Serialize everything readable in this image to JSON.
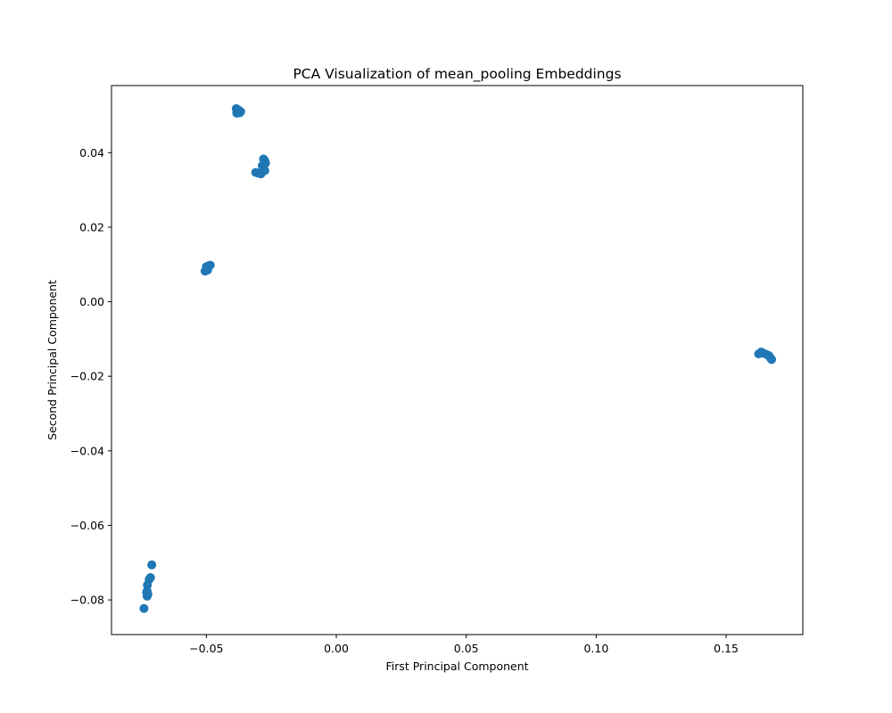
{
  "chart_data": {
    "type": "scatter",
    "title": "PCA Visualization of mean_pooling Embeddings",
    "xlabel": "First Principal Component",
    "ylabel": "Second Principal Component",
    "xlim": [
      -0.0865,
      0.1795
    ],
    "ylim": [
      -0.0893,
      0.058
    ],
    "x_ticks": [
      -0.05,
      0.0,
      0.05,
      0.1,
      0.15
    ],
    "x_tick_labels": [
      "−0.05",
      "0.00",
      "0.05",
      "0.10",
      "0.15"
    ],
    "y_ticks": [
      -0.08,
      -0.06,
      -0.04,
      -0.02,
      0.0,
      0.02,
      0.04
    ],
    "y_tick_labels": [
      "−0.08",
      "−0.06",
      "−0.04",
      "−0.02",
      "0.00",
      "0.02",
      "0.04"
    ],
    "grid": false,
    "marker_color": "#1f77b4",
    "series": [
      {
        "x": [
          -0.0385,
          -0.038,
          -0.0375,
          -0.0383,
          -0.0372,
          -0.0368,
          -0.0378,
          -0.028,
          -0.0275,
          -0.0272,
          -0.0285,
          -0.03,
          -0.031,
          -0.029,
          -0.0275,
          -0.0282,
          -0.0505,
          -0.0495,
          -0.0485,
          -0.05,
          -0.049,
          -0.074,
          -0.0728,
          -0.0725,
          -0.073,
          -0.0728,
          -0.0727,
          -0.072,
          -0.0715,
          -0.071,
          0.1625,
          0.1635,
          0.164,
          0.165,
          0.166,
          0.1665,
          0.167,
          0.1675
        ],
        "y": [
          0.0518,
          0.0512,
          0.0508,
          0.0506,
          0.0507,
          0.051,
          0.0515,
          0.0383,
          0.0378,
          0.0372,
          0.0365,
          0.0345,
          0.0347,
          0.0343,
          0.0352,
          0.036,
          0.0082,
          0.0085,
          0.0098,
          0.0094,
          0.0097,
          -0.0823,
          -0.079,
          -0.0785,
          -0.078,
          -0.0776,
          -0.076,
          -0.0745,
          -0.074,
          -0.0706,
          -0.014,
          -0.0135,
          -0.0137,
          -0.014,
          -0.0143,
          -0.0145,
          -0.015,
          -0.0155
        ]
      }
    ]
  }
}
